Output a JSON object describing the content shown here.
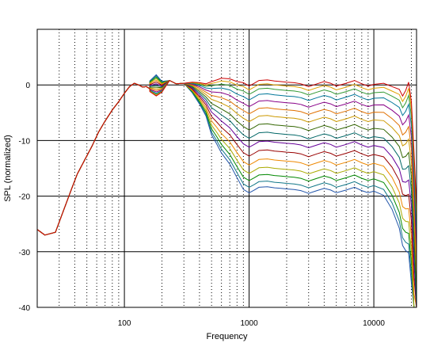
{
  "chart_data": {
    "type": "line",
    "title": "",
    "xlabel": "Frequency",
    "ylabel": "SPL (normalized)",
    "x_scale": "log",
    "xlim": [
      20,
      22000
    ],
    "ylim": [
      -40,
      10
    ],
    "grid": true,
    "legend": "none",
    "x_ticks": [
      {
        "value": 100,
        "label": "100"
      },
      {
        "value": 1000,
        "label": "1000"
      },
      {
        "value": 10000,
        "label": "10000"
      }
    ],
    "y_ticks": [
      {
        "value": 0,
        "label": "0"
      },
      {
        "value": -10,
        "label": "-10"
      },
      {
        "value": -20,
        "label": "-20"
      },
      {
        "value": -30,
        "label": "-30"
      },
      {
        "value": -40,
        "label": "-40"
      }
    ],
    "common_low": {
      "x": [
        20,
        23,
        28,
        32,
        38,
        42,
        48,
        55,
        62,
        70,
        80,
        90,
        100,
        110,
        120,
        130,
        140,
        150,
        160
      ],
      "y": [
        -26,
        -27,
        -26.5,
        -23,
        -18.5,
        -16,
        -13.5,
        -11,
        -8.5,
        -6.5,
        -4.5,
        -3,
        -1.5,
        -0.3,
        0.3,
        0,
        -0.4,
        -0.3,
        -0.7
      ]
    },
    "x": [
      160,
      180,
      200,
      230,
      260,
      300,
      350,
      400,
      450,
      500,
      550,
      600,
      700,
      800,
      900,
      1000,
      1100,
      1200,
      1400,
      1600,
      1800,
      2000,
      2300,
      2600,
      3000,
      3500,
      4000,
      4500,
      5000,
      6000,
      7000,
      8000,
      9000,
      10000,
      12000,
      14000,
      16000,
      17000,
      18000,
      19000,
      20000,
      21000,
      22000
    ],
    "series_colors": [
      "#cc0000",
      "#e0a000",
      "#339933",
      "#007799",
      "#880088",
      "#e07000",
      "#cc9900",
      "#336600",
      "#006666",
      "#660099",
      "#990000",
      "#ee8800",
      "#aaaa00",
      "#008800",
      "#117788",
      "#2255aa"
    ],
    "series": [
      {
        "attenuation": 0
      },
      {
        "attenuation": 0.7
      },
      {
        "attenuation": 1.5
      },
      {
        "attenuation": 2.5
      },
      {
        "attenuation": 3.7
      },
      {
        "attenuation": 5
      },
      {
        "attenuation": 6.4
      },
      {
        "attenuation": 7.9
      },
      {
        "attenuation": 9.4
      },
      {
        "attenuation": 11
      },
      {
        "attenuation": 12.6
      },
      {
        "attenuation": 14.2
      },
      {
        "attenuation": 15.7
      },
      {
        "attenuation": 17
      },
      {
        "attenuation": 18.2
      },
      {
        "attenuation": 19.2
      }
    ],
    "base_curve": [
      -1.2,
      -2,
      -1.3,
      0.8,
      0.2,
      0.3,
      0.5,
      0.4,
      0.2,
      0.6,
      0.9,
      1.2,
      1.1,
      0.6,
      0.4,
      -0.2,
      0.3,
      0.8,
      0.9,
      0.7,
      0.6,
      0.5,
      0.4,
      0.2,
      -0.3,
      0.2,
      0.6,
      0.3,
      -0.2,
      0.3,
      0.8,
      0.2,
      -0.2,
      0.1,
      0.3,
      -0.3,
      -0.8,
      -2,
      -1,
      0.5,
      -3,
      -12,
      -22
    ],
    "rolloff_points": [
      -0.1,
      -0.2,
      -0.1,
      0,
      0,
      0,
      0.1,
      0.2,
      0.3,
      0.5,
      0.6,
      0.7,
      0.8,
      0.9,
      1,
      1,
      1,
      1,
      1,
      1,
      1,
      1,
      1,
      1,
      1,
      1,
      1,
      1,
      1,
      1,
      1,
      1,
      1,
      1,
      1.05,
      1.15,
      1.3,
      1.4,
      1.5,
      1.6,
      1.7,
      1.8,
      1.9
    ]
  }
}
